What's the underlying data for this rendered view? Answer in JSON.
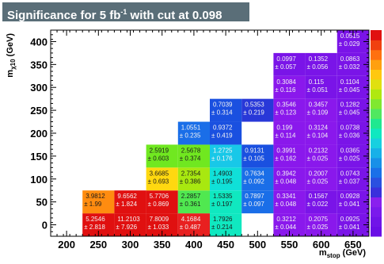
{
  "chart_data": {
    "type": "heatmap",
    "title_main": "Significance for 5 fb",
    "title_sup": "-1",
    "title_tail": " with cut at 0.098",
    "xlabel_main": "m",
    "xlabel_sub": "stop",
    "xlabel_unit": " (GeV)",
    "ylabel_main": "m",
    "ylabel_sub": "χ10",
    "ylabel_unit": " (GeV)",
    "xlim": [
      175,
      675
    ],
    "ylim": [
      -25,
      425
    ],
    "x_ticks": [
      "200",
      "250",
      "300",
      "350",
      "400",
      "450",
      "500",
      "550",
      "600",
      "650"
    ],
    "y_ticks": [
      "0",
      "50",
      "100",
      "150",
      "200",
      "250",
      "300",
      "350",
      "400"
    ],
    "x_tick_values": [
      200,
      250,
      300,
      350,
      400,
      450,
      500,
      550,
      600,
      650
    ],
    "y_tick_values": [
      0,
      50,
      100,
      150,
      200,
      250,
      300,
      350,
      400
    ],
    "cells": [
      {
        "x": 250,
        "y": 0,
        "value": "5.2546",
        "error": "± 2.818",
        "color": "#e01010"
      },
      {
        "x": 300,
        "y": 0,
        "value": "11.2103",
        "error": "± 7.926",
        "color": "#e01010"
      },
      {
        "x": 350,
        "y": 0,
        "value": "7.8009",
        "error": "± 1.033",
        "color": "#e01010"
      },
      {
        "x": 400,
        "y": 0,
        "value": "4.1684",
        "error": "± 0.487",
        "color": "#e82020"
      },
      {
        "x": 450,
        "y": 0,
        "value": "1.7926",
        "error": "± 0.214",
        "color": "#10e8c0"
      },
      {
        "x": 550,
        "y": 0,
        "value": "0.3212",
        "error": "± 0.044",
        "color": "#8a18ec"
      },
      {
        "x": 600,
        "y": 0,
        "value": "0.2075",
        "error": "± 0.025",
        "color": "#8a18ec"
      },
      {
        "x": 650,
        "y": 0,
        "value": "0.0925",
        "error": "± 0.041",
        "color": "#7a14e8"
      },
      {
        "x": 250,
        "y": 50,
        "value": "3.9812",
        "error": "± 1.99",
        "color": "#ff8c10"
      },
      {
        "x": 300,
        "y": 50,
        "value": "9.6562",
        "error": "± 1.824",
        "color": "#e01010"
      },
      {
        "x": 350,
        "y": 50,
        "value": "5.7706",
        "error": "± 0.869",
        "color": "#e01010"
      },
      {
        "x": 400,
        "y": 50,
        "value": "2.2857",
        "error": "± 0.361",
        "color": "#50e850"
      },
      {
        "x": 450,
        "y": 50,
        "value": "1.5335",
        "error": "± 0.197",
        "color": "#10e8c0"
      },
      {
        "x": 500,
        "y": 50,
        "value": "0.7897",
        "error": "± 0.097",
        "color": "#1a6ee8"
      },
      {
        "x": 550,
        "y": 50,
        "value": "0.3341",
        "error": "± 0.048",
        "color": "#8a18ec"
      },
      {
        "x": 600,
        "y": 50,
        "value": "0.1567",
        "error": "± 0.022",
        "color": "#7a14e8"
      },
      {
        "x": 650,
        "y": 50,
        "value": "0.0928",
        "error": "± 0.041",
        "color": "#7a14e8"
      },
      {
        "x": 350,
        "y": 100,
        "value": "3.6685",
        "error": "± 0.693",
        "color": "#ffd810"
      },
      {
        "x": 400,
        "y": 100,
        "value": "2.7354",
        "error": "± 0.386",
        "color": "#a8e810"
      },
      {
        "x": 450,
        "y": 100,
        "value": "1.4903",
        "error": "± 0.195",
        "color": "#10e0d8"
      },
      {
        "x": 500,
        "y": 100,
        "value": "0.7634",
        "error": "± 0.092",
        "color": "#1a6ee8"
      },
      {
        "x": 550,
        "y": 100,
        "value": "0.3942",
        "error": "± 0.048",
        "color": "#8a18ec"
      },
      {
        "x": 600,
        "y": 100,
        "value": "0.2007",
        "error": "± 0.025",
        "color": "#8a18ec"
      },
      {
        "x": 650,
        "y": 100,
        "value": "0.0743",
        "error": "± 0.037",
        "color": "#7a14e8"
      },
      {
        "x": 350,
        "y": 150,
        "value": "2.5919",
        "error": "± 0.603",
        "color": "#70e820"
      },
      {
        "x": 400,
        "y": 150,
        "value": "2.5678",
        "error": "± 0.374",
        "color": "#70e820"
      },
      {
        "x": 450,
        "y": 150,
        "value": "1.2725",
        "error": "± 0.176",
        "color": "#18c8e8"
      },
      {
        "x": 500,
        "y": 150,
        "value": "0.9131",
        "error": "± 0.105",
        "color": "#1a50e0"
      },
      {
        "x": 550,
        "y": 150,
        "value": "0.3991",
        "error": "± 0.162",
        "color": "#8a18ec"
      },
      {
        "x": 600,
        "y": 150,
        "value": "0.2132",
        "error": "± 0.025",
        "color": "#8a18ec"
      },
      {
        "x": 650,
        "y": 150,
        "value": "0.0365",
        "error": "± 0.025",
        "color": "#7a14e8"
      },
      {
        "x": 400,
        "y": 200,
        "value": "1.0551",
        "error": "± 0.235",
        "color": "#1a6ee8"
      },
      {
        "x": 450,
        "y": 200,
        "value": "0.9372",
        "error": "± 0.419",
        "color": "#1a50e0"
      },
      {
        "x": 550,
        "y": 200,
        "value": "0.199",
        "error": "± 0.114",
        "color": "#8a18ec"
      },
      {
        "x": 600,
        "y": 200,
        "value": "0.3124",
        "error": "± 0.104",
        "color": "#8a18ec"
      },
      {
        "x": 650,
        "y": 200,
        "value": "0.0738",
        "error": "± 0.036",
        "color": "#7a14e8"
      },
      {
        "x": 450,
        "y": 250,
        "value": "0.7039",
        "error": "± 0.314",
        "color": "#1a50e0"
      },
      {
        "x": 500,
        "y": 250,
        "value": "0.5353",
        "error": "± 0.219",
        "color": "#2838d8"
      },
      {
        "x": 550,
        "y": 250,
        "value": "0.3546",
        "error": "± 0.123",
        "color": "#8a18ec"
      },
      {
        "x": 600,
        "y": 250,
        "value": "0.3457",
        "error": "± 0.109",
        "color": "#8a18ec"
      },
      {
        "x": 650,
        "y": 250,
        "value": "0.1282",
        "error": "± 0.045",
        "color": "#7a14e8"
      },
      {
        "x": 550,
        "y": 300,
        "value": "0.3084",
        "error": "± 0.116",
        "color": "#8a18ec"
      },
      {
        "x": 600,
        "y": 300,
        "value": "0.115",
        "error": "± 0.051",
        "color": "#7a14e8"
      },
      {
        "x": 650,
        "y": 300,
        "value": "0.1104",
        "error": "± 0.045",
        "color": "#7a14e8"
      },
      {
        "x": 550,
        "y": 350,
        "value": "0.0997",
        "error": "± 0.057",
        "color": "#7a14e8"
      },
      {
        "x": 600,
        "y": 350,
        "value": "0.1352",
        "error": "± 0.056",
        "color": "#7a14e8"
      },
      {
        "x": 650,
        "y": 350,
        "value": "0.0863",
        "error": "± 0.032",
        "color": "#7a14e8"
      },
      {
        "x": 650,
        "y": 400,
        "value": "0.0515",
        "error": "± 0.029",
        "color": "#7a14e8"
      }
    ],
    "palette": [
      "#6a0ee6",
      "#7014e8",
      "#7a1aec",
      "#8a20ee",
      "#3a30dc",
      "#2a50e0",
      "#1a70e8",
      "#1890e8",
      "#18b0e8",
      "#18d0e0",
      "#10e8c0",
      "#20e890",
      "#50e860",
      "#80e830",
      "#b0e810",
      "#e0e010",
      "#ffc810",
      "#ffa010",
      "#ff7010",
      "#f04010",
      "#e01010"
    ]
  }
}
